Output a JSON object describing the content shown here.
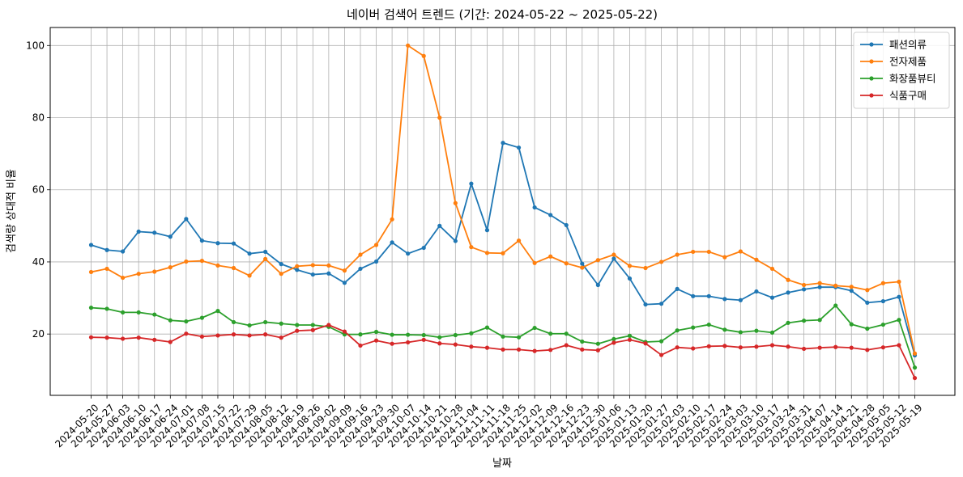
{
  "chart_data": {
    "type": "line",
    "title": "네이버 검색어 트렌드 (기간: 2024-05-22 ~ 2025-05-22)",
    "xlabel": "날짜",
    "ylabel": "검색량 상대적 비율",
    "ylim": [
      3,
      105
    ],
    "yticks": [
      20,
      40,
      60,
      80,
      100
    ],
    "grid": true,
    "legend_position": "top-right",
    "x": [
      "2024-05-20",
      "2024-05-27",
      "2024-06-03",
      "2024-06-10",
      "2024-06-17",
      "2024-06-24",
      "2024-07-01",
      "2024-07-08",
      "2024-07-15",
      "2024-07-22",
      "2024-07-29",
      "2024-08-05",
      "2024-08-12",
      "2024-08-19",
      "2024-08-26",
      "2024-09-02",
      "2024-09-09",
      "2024-09-16",
      "2024-09-23",
      "2024-09-30",
      "2024-10-07",
      "2024-10-14",
      "2024-10-21",
      "2024-10-28",
      "2024-11-04",
      "2024-11-11",
      "2024-11-18",
      "2024-11-25",
      "2024-12-02",
      "2024-12-09",
      "2024-12-16",
      "2024-12-23",
      "2024-12-30",
      "2025-01-06",
      "2025-01-13",
      "2025-01-20",
      "2025-01-27",
      "2025-02-03",
      "2025-02-10",
      "2025-02-17",
      "2025-02-24",
      "2025-03-03",
      "2025-03-10",
      "2025-03-17",
      "2025-03-24",
      "2025-03-31",
      "2025-04-07",
      "2025-04-14",
      "2025-04-21",
      "2025-04-28",
      "2025-05-05",
      "2025-05-12",
      "2025-05-19"
    ],
    "series": [
      {
        "name": "패션의류",
        "color": "#1f77b4",
        "values": [
          44.7,
          43.3,
          42.9,
          48.4,
          48.1,
          47.0,
          51.9,
          45.9,
          45.2,
          45.1,
          42.3,
          42.8,
          39.4,
          37.8,
          36.5,
          36.8,
          34.2,
          38.1,
          40.1,
          45.4,
          42.3,
          43.9,
          50.0,
          45.8,
          61.7,
          48.8,
          73.0,
          71.7,
          55.1,
          53.0,
          50.2,
          39.5,
          33.6,
          40.9,
          35.4,
          28.2,
          28.4,
          32.5,
          30.5,
          30.5,
          29.7,
          29.4,
          31.8,
          30.1,
          31.5,
          32.4,
          33.0,
          33.0,
          32.0,
          28.7,
          29.1,
          30.3,
          14.1
        ]
      },
      {
        "name": "전자제품",
        "color": "#ff7f0e",
        "values": [
          37.2,
          38.1,
          35.6,
          36.7,
          37.3,
          38.5,
          40.1,
          40.3,
          39.0,
          38.3,
          36.2,
          40.8,
          36.7,
          38.8,
          39.1,
          39.0,
          37.6,
          42.0,
          44.7,
          51.8,
          100.0,
          97.1,
          80.0,
          56.3,
          44.1,
          42.5,
          42.4,
          45.9,
          39.7,
          41.5,
          39.6,
          38.4,
          40.5,
          42.0,
          38.9,
          38.3,
          40.0,
          42.0,
          42.8,
          42.8,
          41.3,
          42.9,
          40.6,
          38.1,
          35.0,
          33.6,
          34.1,
          33.4,
          33.1,
          32.2,
          34.1,
          34.5,
          14.6
        ]
      },
      {
        "name": "화장품뷰티",
        "color": "#2ca02c",
        "values": [
          27.3,
          27.0,
          26.0,
          26.0,
          25.4,
          23.8,
          23.5,
          24.5,
          26.4,
          23.3,
          22.4,
          23.3,
          22.9,
          22.5,
          22.5,
          22.0,
          19.9,
          19.9,
          20.6,
          19.8,
          19.8,
          19.7,
          19.1,
          19.7,
          20.2,
          21.8,
          19.3,
          19.1,
          21.7,
          20.1,
          20.1,
          17.9,
          17.3,
          18.6,
          19.5,
          17.8,
          18.0,
          21.0,
          21.8,
          22.6,
          21.2,
          20.5,
          20.9,
          20.4,
          23.1,
          23.7,
          23.9,
          27.9,
          22.7,
          21.5,
          22.6,
          23.9,
          10.7
        ]
      },
      {
        "name": "식품구매",
        "color": "#d62728",
        "values": [
          19.1,
          19.0,
          18.7,
          19.0,
          18.4,
          17.8,
          20.1,
          19.3,
          19.6,
          19.9,
          19.6,
          19.9,
          19.0,
          20.9,
          21.1,
          22.5,
          20.7,
          16.8,
          18.2,
          17.3,
          17.7,
          18.4,
          17.4,
          17.1,
          16.5,
          16.2,
          15.7,
          15.7,
          15.3,
          15.6,
          16.9,
          15.7,
          15.5,
          17.6,
          18.4,
          17.4,
          14.2,
          16.3,
          16.0,
          16.6,
          16.7,
          16.3,
          16.5,
          16.9,
          16.5,
          15.9,
          16.2,
          16.4,
          16.2,
          15.6,
          16.3,
          16.9,
          7.8
        ]
      }
    ]
  }
}
